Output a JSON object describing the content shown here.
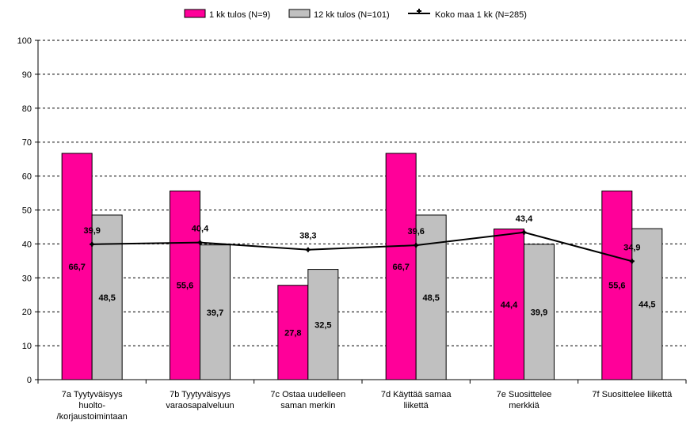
{
  "chart_data": {
    "type": "bar",
    "categories": [
      [
        "7a Tyytyväisyys",
        "huolto-",
        "/korjaustoimintaan"
      ],
      [
        "7b Tyytyväisyys",
        "varaosapalveluun"
      ],
      [
        "7c Ostaa uudelleen",
        "saman merkin"
      ],
      [
        "7d Käyttää samaa",
        "liikettä"
      ],
      [
        "7e Suosittelee",
        "merkkiä"
      ],
      [
        "7f Suosittelee liikettä"
      ]
    ],
    "series": [
      {
        "name": "1 kk tulos (N=9)",
        "kind": "bar",
        "color": "#ff0099",
        "values": [
          66.7,
          55.6,
          27.8,
          66.7,
          44.4,
          55.6
        ],
        "labels": [
          "66,7",
          "55,6",
          "27,8",
          "66,7",
          "44,4",
          "55,6"
        ]
      },
      {
        "name": "12 kk tulos (N=101)",
        "kind": "bar",
        "color": "#c0c0c0",
        "values": [
          48.5,
          39.7,
          32.5,
          48.5,
          39.9,
          44.5
        ],
        "labels": [
          "48,5",
          "39,7",
          "32,5",
          "48,5",
          "39,9",
          "44,5"
        ]
      },
      {
        "name": "Koko maa 1 kk (N=285)",
        "kind": "line",
        "color": "#000000",
        "values": [
          39.9,
          40.4,
          38.3,
          39.6,
          43.4,
          34.9
        ],
        "labels": [
          "39,9",
          "40,4",
          "38,3",
          "39,6",
          "43,4",
          "34,9"
        ]
      }
    ],
    "yticks": [
      0,
      10,
      20,
      30,
      40,
      50,
      60,
      70,
      80,
      90,
      100
    ],
    "ylim": [
      0,
      100
    ],
    "grid": "horizontal dashed",
    "legend_position": "top",
    "title": "",
    "xlabel": "",
    "ylabel": ""
  }
}
